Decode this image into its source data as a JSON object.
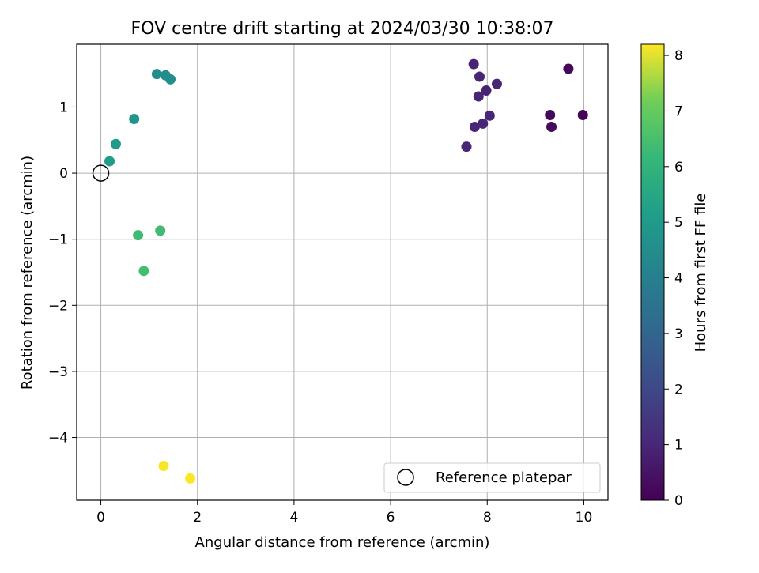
{
  "chart_data": {
    "type": "scatter",
    "title": "FOV centre drift starting at 2024/03/30 10:38:07",
    "xlabel": "Angular distance from reference (arcmin)",
    "ylabel": "Rotation from reference (arcmin)",
    "xlim": [
      -0.5,
      10.5
    ],
    "ylim": [
      -4.95,
      1.95
    ],
    "xticks": [
      0,
      2,
      4,
      6,
      8,
      10
    ],
    "yticks": [
      1,
      0,
      -1,
      -2,
      -3,
      -4
    ],
    "xtick_labels": [
      "0",
      "2",
      "4",
      "6",
      "8",
      "10"
    ],
    "ytick_labels": [
      "1",
      "0",
      "−1",
      "−2",
      "−3",
      "−4"
    ],
    "grid": true,
    "legend": {
      "placement": "lower-right",
      "entries": [
        "Reference platepar"
      ]
    },
    "reference_point": {
      "x": 0,
      "y": 0
    },
    "colorbar": {
      "label": "Hours from first FF file",
      "colormap": "viridis",
      "range": [
        0,
        8.2
      ],
      "ticks": [
        0,
        1,
        2,
        3,
        4,
        5,
        6,
        7,
        8
      ],
      "tick_labels": [
        "0",
        "1",
        "2",
        "3",
        "4",
        "5",
        "6",
        "7",
        "8"
      ]
    },
    "points": [
      {
        "x": 9.98,
        "y": 0.88,
        "hours": 0.05
      },
      {
        "x": 9.68,
        "y": 1.58,
        "hours": 0.15
      },
      {
        "x": 9.3,
        "y": 0.88,
        "hours": 0.2
      },
      {
        "x": 9.33,
        "y": 0.7,
        "hours": 0.25
      },
      {
        "x": 7.72,
        "y": 1.65,
        "hours": 0.9
      },
      {
        "x": 7.84,
        "y": 1.46,
        "hours": 0.95
      },
      {
        "x": 8.2,
        "y": 1.35,
        "hours": 1.0
      },
      {
        "x": 7.98,
        "y": 1.25,
        "hours": 0.9
      },
      {
        "x": 7.82,
        "y": 1.16,
        "hours": 0.95
      },
      {
        "x": 8.05,
        "y": 0.87,
        "hours": 1.0
      },
      {
        "x": 7.91,
        "y": 0.75,
        "hours": 0.95
      },
      {
        "x": 7.74,
        "y": 0.7,
        "hours": 1.0
      },
      {
        "x": 7.57,
        "y": 0.4,
        "hours": 1.0
      },
      {
        "x": 1.16,
        "y": 1.5,
        "hours": 4.45
      },
      {
        "x": 1.34,
        "y": 1.48,
        "hours": 4.5
      },
      {
        "x": 1.44,
        "y": 1.42,
        "hours": 4.55
      },
      {
        "x": 0.69,
        "y": 0.82,
        "hours": 4.8
      },
      {
        "x": 0.31,
        "y": 0.44,
        "hours": 5.0
      },
      {
        "x": 0.18,
        "y": 0.18,
        "hours": 5.05
      },
      {
        "x": 0.77,
        "y": -0.94,
        "hours": 6.3
      },
      {
        "x": 1.23,
        "y": -0.87,
        "hours": 6.35
      },
      {
        "x": 0.89,
        "y": -1.48,
        "hours": 6.4
      },
      {
        "x": 1.3,
        "y": -4.43,
        "hours": 8.15
      },
      {
        "x": 1.85,
        "y": -4.62,
        "hours": 8.2
      }
    ]
  }
}
